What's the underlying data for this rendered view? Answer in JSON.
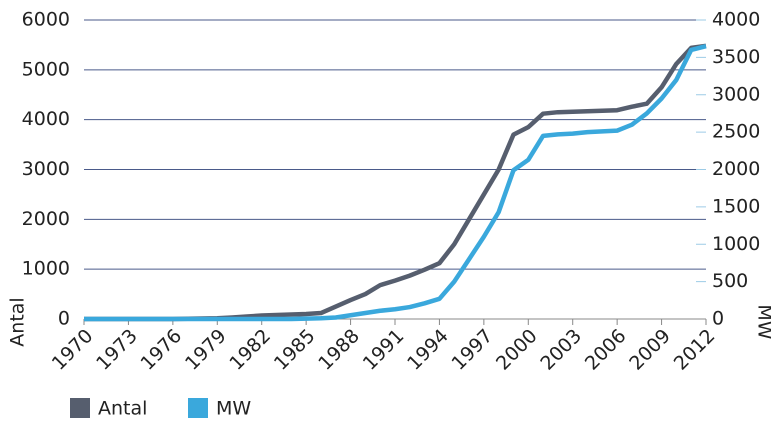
{
  "chart_data": {
    "type": "line",
    "x": [
      1970,
      1971,
      1972,
      1973,
      1974,
      1975,
      1976,
      1977,
      1978,
      1979,
      1980,
      1981,
      1982,
      1983,
      1984,
      1985,
      1986,
      1987,
      1988,
      1989,
      1990,
      1991,
      1992,
      1993,
      1994,
      1995,
      1996,
      1997,
      1998,
      1999,
      2000,
      2001,
      2002,
      2003,
      2004,
      2005,
      2006,
      2007,
      2008,
      2009,
      2010,
      2011,
      2012
    ],
    "xlim": [
      1970,
      2012
    ],
    "xticks": [
      1970,
      1973,
      1976,
      1979,
      1982,
      1985,
      1988,
      1991,
      1994,
      1997,
      2000,
      2003,
      2006,
      2009,
      2012
    ],
    "ylim": [
      0,
      6000
    ],
    "yticks": [
      0,
      1000,
      2000,
      3000,
      4000,
      5000,
      6000
    ],
    "y2lim": [
      0,
      4000
    ],
    "y2ticks": [
      0,
      500,
      1000,
      1500,
      2000,
      2500,
      3000,
      3500,
      4000
    ],
    "ylabel": "Antal",
    "y2label": "MW",
    "grid": true,
    "legend": "bottom-left",
    "series": [
      {
        "name": "Antal",
        "color": "#565e6e",
        "values": [
          0,
          0,
          0,
          0,
          0,
          0,
          0,
          5,
          10,
          15,
          30,
          50,
          70,
          80,
          90,
          100,
          120,
          250,
          380,
          500,
          680,
          770,
          870,
          990,
          1120,
          1500,
          2000,
          2500,
          3000,
          3700,
          3850,
          4120,
          4150,
          4160,
          4170,
          4180,
          4190,
          4260,
          4320,
          4650,
          5120,
          5440,
          5480
        ]
      },
      {
        "name": "MW",
        "color": "#3aa8dc",
        "axis": "y2",
        "values": [
          0,
          0,
          0,
          0,
          0,
          0,
          0,
          0,
          0,
          0,
          0,
          0,
          0,
          0,
          0,
          5,
          10,
          20,
          50,
          80,
          110,
          130,
          160,
          210,
          270,
          500,
          800,
          1100,
          1430,
          1990,
          2130,
          2450,
          2470,
          2480,
          2500,
          2510,
          2520,
          2600,
          2750,
          2950,
          3200,
          3600,
          3650
        ]
      }
    ]
  }
}
